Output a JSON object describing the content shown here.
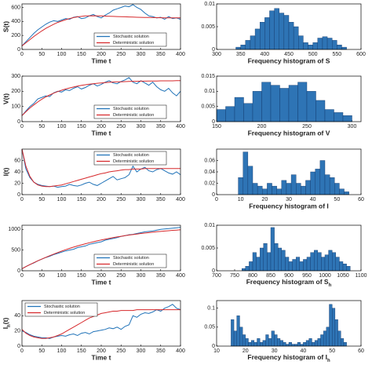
{
  "chart_data": [
    {
      "type": "line",
      "ylabel": "S(t)",
      "xlabel": "Time t",
      "legend": "lower right",
      "x": [
        0,
        10,
        20,
        30,
        40,
        50,
        60,
        70,
        80,
        90,
        100,
        110,
        120,
        130,
        140,
        150,
        160,
        170,
        180,
        190,
        200,
        210,
        220,
        230,
        240,
        250,
        260,
        270,
        280,
        290,
        300,
        310,
        320,
        330,
        340,
        350,
        360,
        370,
        380,
        390,
        400
      ],
      "xlim": [
        0,
        400
      ],
      "xticks": [
        0,
        50,
        100,
        150,
        200,
        250,
        300,
        350,
        400
      ],
      "ylim": [
        0,
        650
      ],
      "yticks": [
        0,
        200,
        400,
        600
      ],
      "series": [
        {
          "name": "Stochastic solution",
          "color": "#1f72b8",
          "values": [
            50,
            110,
            170,
            230,
            280,
            320,
            360,
            390,
            410,
            400,
            420,
            440,
            430,
            460,
            470,
            440,
            450,
            480,
            500,
            470,
            450,
            490,
            520,
            560,
            580,
            600,
            620,
            610,
            640,
            600,
            570,
            520,
            480,
            470,
            450,
            460,
            430,
            470,
            440,
            450,
            430
          ]
        },
        {
          "name": "Deterministic solution",
          "color": "#d6282b",
          "values": [
            50,
            95,
            140,
            185,
            225,
            265,
            300,
            330,
            360,
            385,
            405,
            425,
            440,
            455,
            465,
            472,
            478,
            480,
            481,
            480,
            478,
            476,
            474,
            472,
            470,
            468,
            466,
            464,
            462,
            460,
            458,
            457,
            456,
            455,
            454,
            453,
            452,
            452,
            451,
            451,
            450
          ]
        }
      ]
    },
    {
      "type": "histogram",
      "xlabel": "Frequency histogram of S",
      "color": "#2e74b5",
      "bins": [
        340,
        350,
        360,
        370,
        380,
        390,
        400,
        410,
        420,
        430,
        440,
        450,
        460,
        470,
        480,
        490,
        500,
        510,
        520,
        530,
        540,
        550,
        560,
        570
      ],
      "counts": [
        0.0005,
        0.001,
        0.002,
        0.003,
        0.0045,
        0.006,
        0.007,
        0.0085,
        0.009,
        0.008,
        0.0075,
        0.006,
        0.005,
        0.003,
        0.0015,
        0.001,
        0.0015,
        0.0025,
        0.0028,
        0.0025,
        0.002,
        0.001,
        0.0005
      ],
      "xlim": [
        300,
        600
      ],
      "xticks": [
        300,
        350,
        400,
        450,
        500,
        550,
        600
      ],
      "ylim": [
        0,
        0.01
      ],
      "yticks": [
        0,
        0.005,
        0.01
      ]
    },
    {
      "type": "line",
      "ylabel": "V(t)",
      "xlabel": "Time t",
      "legend": "lower right",
      "x": [
        0,
        10,
        20,
        30,
        40,
        50,
        60,
        70,
        80,
        90,
        100,
        110,
        120,
        130,
        140,
        150,
        160,
        170,
        180,
        190,
        200,
        210,
        220,
        230,
        240,
        250,
        260,
        270,
        280,
        290,
        300,
        310,
        320,
        330,
        340,
        350,
        360,
        370,
        380,
        390,
        400
      ],
      "xlim": [
        0,
        400
      ],
      "xticks": [
        0,
        50,
        100,
        150,
        200,
        250,
        300,
        350,
        400
      ],
      "ylim": [
        0,
        300
      ],
      "yticks": [
        0,
        100,
        200,
        300
      ],
      "series": [
        {
          "name": "Stochastic solution",
          "color": "#1f72b8",
          "values": [
            40,
            70,
            100,
            120,
            150,
            160,
            170,
            165,
            190,
            200,
            195,
            210,
            205,
            220,
            230,
            215,
            225,
            240,
            250,
            235,
            245,
            260,
            270,
            255,
            250,
            265,
            275,
            290,
            260,
            250,
            270,
            255,
            240,
            260,
            230,
            210,
            200,
            220,
            190,
            170,
            200
          ]
        },
        {
          "name": "Deterministic solution",
          "color": "#d6282b",
          "values": [
            40,
            65,
            90,
            110,
            130,
            148,
            163,
            176,
            188,
            198,
            207,
            215,
            222,
            228,
            234,
            239,
            243,
            247,
            250,
            253,
            255,
            257,
            259,
            261,
            262,
            263,
            264,
            265,
            266,
            266,
            267,
            267,
            268,
            268,
            268,
            269,
            269,
            269,
            269,
            270,
            270
          ]
        }
      ]
    },
    {
      "type": "histogram",
      "xlabel": "Frequency histogram of V",
      "color": "#2e74b5",
      "bins": [
        150,
        160,
        170,
        180,
        190,
        200,
        210,
        220,
        230,
        240,
        250,
        260,
        270,
        280,
        290,
        300
      ],
      "counts": [
        0.004,
        0.005,
        0.008,
        0.006,
        0.01,
        0.013,
        0.012,
        0.011,
        0.012,
        0.013,
        0.01,
        0.007,
        0.004,
        0.003,
        0.002
      ],
      "xlim": [
        150,
        310
      ],
      "xticks": [
        150,
        200,
        250,
        300
      ],
      "ylim": [
        0,
        0.015
      ],
      "yticks": [
        0,
        0.005,
        0.01,
        0.015
      ]
    },
    {
      "type": "line",
      "ylabel": "I(t)",
      "legend": "upper right",
      "x": [
        0,
        10,
        20,
        30,
        40,
        50,
        60,
        70,
        80,
        90,
        100,
        110,
        120,
        130,
        140,
        150,
        160,
        170,
        180,
        190,
        200,
        210,
        220,
        230,
        240,
        250,
        260,
        270,
        280,
        290,
        300,
        310,
        320,
        330,
        340,
        350,
        360,
        370,
        380,
        390,
        400
      ],
      "xlim": [
        0,
        400
      ],
      "xticks": [
        0,
        50,
        100,
        150,
        200,
        250,
        300,
        350,
        400
      ],
      "ylim": [
        0,
        80
      ],
      "yticks": [
        0,
        20,
        40,
        60
      ],
      "series": [
        {
          "name": "Stochastic solution",
          "color": "#1f72b8",
          "values": [
            80,
            45,
            30,
            22,
            18,
            16,
            15,
            14,
            15,
            13,
            14,
            15,
            18,
            16,
            15,
            17,
            20,
            22,
            18,
            16,
            20,
            24,
            28,
            32,
            26,
            28,
            30,
            35,
            50,
            40,
            45,
            48,
            42,
            40,
            44,
            46,
            42,
            38,
            36,
            40,
            35
          ]
        },
        {
          "name": "Deterministic solution",
          "color": "#d6282b",
          "values": [
            80,
            50,
            32,
            22,
            17,
            15,
            14,
            14,
            15,
            16,
            17,
            19,
            21,
            23,
            25,
            27,
            29,
            31,
            33,
            35,
            37,
            38,
            40,
            41,
            42,
            43,
            44,
            44,
            45,
            45,
            45,
            46,
            46,
            46,
            46,
            46,
            46,
            46,
            46,
            46,
            46
          ]
        }
      ]
    },
    {
      "type": "histogram",
      "xlabel": "Frequency histogram of I",
      "color": "#2e74b5",
      "bins": [
        9,
        11,
        13,
        15,
        17,
        19,
        21,
        23,
        25,
        27,
        29,
        31,
        33,
        35,
        37,
        39,
        41,
        43,
        45,
        47,
        49,
        51,
        53,
        55
      ],
      "counts": [
        0.03,
        0.075,
        0.05,
        0.02,
        0.015,
        0.01,
        0.02,
        0.015,
        0.01,
        0.025,
        0.02,
        0.035,
        0.02,
        0.015,
        0.025,
        0.04,
        0.045,
        0.06,
        0.035,
        0.03,
        0.02,
        0.01,
        0.005
      ],
      "xlim": [
        0,
        60
      ],
      "xticks": [
        0,
        10,
        20,
        30,
        40,
        50,
        60
      ],
      "ylim": [
        0,
        0.08
      ],
      "yticks": [
        0,
        0.02,
        0.04,
        0.06
      ]
    },
    {
      "type": "line",
      "xlabel": "Time t",
      "legend": "lower right",
      "x": [
        0,
        10,
        20,
        30,
        40,
        50,
        60,
        70,
        80,
        90,
        100,
        110,
        120,
        130,
        140,
        150,
        160,
        170,
        180,
        190,
        200,
        210,
        220,
        230,
        240,
        250,
        260,
        270,
        280,
        290,
        300,
        310,
        320,
        330,
        340,
        350,
        360,
        370,
        380,
        390,
        400
      ],
      "xlim": [
        0,
        400
      ],
      "xticks": [
        0,
        50,
        100,
        150,
        200,
        250,
        300,
        350,
        400
      ],
      "ylim": [
        0,
        1100
      ],
      "yticks": [
        0,
        500,
        1000
      ],
      "series": [
        {
          "name": "Stochastic solution",
          "color": "#1f72b8",
          "values": [
            50,
            100,
            150,
            190,
            240,
            280,
            320,
            350,
            390,
            420,
            450,
            480,
            500,
            520,
            560,
            580,
            600,
            640,
            660,
            680,
            700,
            740,
            760,
            780,
            800,
            830,
            850,
            870,
            880,
            900,
            920,
            940,
            950,
            960,
            980,
            1000,
            1010,
            1020,
            1030,
            1040,
            1050
          ]
        },
        {
          "name": "Deterministic solution",
          "color": "#d6282b",
          "values": [
            50,
            100,
            148,
            195,
            240,
            283,
            325,
            365,
            403,
            440,
            475,
            508,
            540,
            570,
            599,
            626,
            652,
            677,
            700,
            722,
            743,
            763,
            782,
            800,
            817,
            833,
            848,
            862,
            875,
            888,
            900,
            911,
            922,
            932,
            942,
            951,
            960,
            968,
            976,
            983,
            990
          ]
        }
      ]
    },
    {
      "type": "histogram",
      "xlabel": {
        "text": "Frequency histogram of S",
        "sub": "h"
      },
      "color": "#2e74b5",
      "bins": [
        770,
        780,
        790,
        800,
        810,
        820,
        830,
        840,
        850,
        860,
        870,
        880,
        890,
        900,
        910,
        920,
        930,
        940,
        950,
        960,
        970,
        980,
        990,
        1000,
        1010,
        1020,
        1030,
        1040,
        1050,
        1060,
        1070
      ],
      "counts": [
        0.0005,
        0.001,
        0.002,
        0.004,
        0.003,
        0.005,
        0.006,
        0.004,
        0.0095,
        0.006,
        0.005,
        0.0045,
        0.003,
        0.002,
        0.0025,
        0.003,
        0.002,
        0.0025,
        0.003,
        0.004,
        0.0045,
        0.004,
        0.003,
        0.0035,
        0.0045,
        0.004,
        0.003,
        0.002,
        0.0015,
        0.001
      ],
      "xlim": [
        700,
        1100
      ],
      "xticks": [
        700,
        750,
        800,
        850,
        900,
        950,
        1000,
        1050,
        1100
      ],
      "ylim": [
        0,
        0.01
      ],
      "yticks": [
        0,
        0.005,
        0.01
      ]
    },
    {
      "type": "line",
      "ylabel": {
        "text": "I",
        "sub": "h",
        "rest": "(t)"
      },
      "xlabel": "Time t",
      "legend": "upper left",
      "x": [
        0,
        10,
        20,
        30,
        40,
        50,
        60,
        70,
        80,
        90,
        100,
        110,
        120,
        130,
        140,
        150,
        160,
        170,
        180,
        190,
        200,
        210,
        220,
        230,
        240,
        250,
        260,
        270,
        280,
        290,
        300,
        310,
        320,
        330,
        340,
        350,
        360,
        370,
        380,
        390,
        400
      ],
      "xlim": [
        0,
        400
      ],
      "xticks": [
        0,
        50,
        100,
        150,
        200,
        250,
        300,
        350,
        400
      ],
      "ylim": [
        0,
        60
      ],
      "yticks": [
        0,
        20,
        40
      ],
      "series": [
        {
          "name": "Stochastic solution",
          "color": "#1f72b8",
          "values": [
            20,
            18,
            15,
            13,
            12,
            11,
            11,
            10,
            12,
            13,
            14,
            13,
            15,
            16,
            14,
            17,
            18,
            16,
            19,
            20,
            21,
            22,
            24,
            23,
            25,
            22,
            26,
            28,
            40,
            38,
            42,
            44,
            43,
            45,
            48,
            46,
            50,
            52,
            55,
            50,
            48
          ]
        },
        {
          "name": "Deterministic solution",
          "color": "#d6282b",
          "values": [
            22,
            17,
            14,
            12,
            11,
            10,
            10,
            11,
            12,
            14,
            16,
            19,
            22,
            25,
            28,
            31,
            34,
            37,
            39,
            41,
            43,
            44,
            45,
            46,
            46,
            47,
            47,
            47,
            47,
            48,
            48,
            48,
            48,
            48,
            48,
            48,
            48,
            48,
            48,
            48,
            48
          ]
        }
      ]
    },
    {
      "type": "histogram",
      "xlabel": {
        "text": "Frequency histogram of I",
        "sub": "h"
      },
      "color": "#2e74b5",
      "bins": [
        15,
        16,
        17,
        18,
        19,
        20,
        21,
        22,
        23,
        24,
        25,
        26,
        27,
        28,
        29,
        30,
        31,
        32,
        33,
        34,
        35,
        36,
        37,
        38,
        39,
        40,
        41,
        42,
        43,
        44,
        45,
        46,
        47,
        48,
        49,
        50,
        51,
        52,
        53,
        54,
        55
      ],
      "counts": [
        0.07,
        0.04,
        0.08,
        0.05,
        0.03,
        0.02,
        0.01,
        0.015,
        0.01,
        0.02,
        0.01,
        0.015,
        0.03,
        0.02,
        0.04,
        0.03,
        0.02,
        0.015,
        0.01,
        0.005,
        0.01,
        0.005,
        0.005,
        0.01,
        0.005,
        0.01,
        0.015,
        0.02,
        0.01,
        0.015,
        0.02,
        0.03,
        0.04,
        0.05,
        0.11,
        0.1,
        0.07,
        0.04,
        0.02,
        0.01
      ],
      "xlim": [
        10,
        60
      ],
      "xticks": [
        10,
        20,
        30,
        40,
        50,
        60
      ],
      "ylim": [
        0,
        0.12
      ],
      "yticks": [
        0,
        0.05,
        0.1
      ]
    }
  ]
}
